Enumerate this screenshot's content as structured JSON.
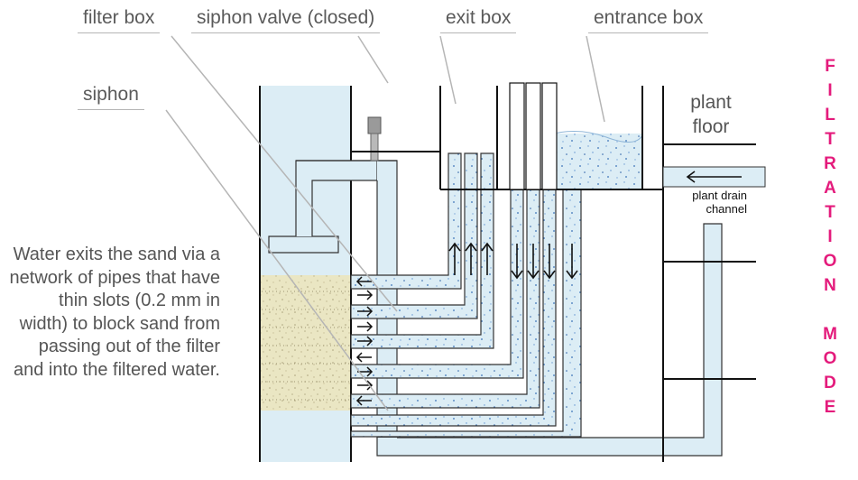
{
  "labels": {
    "filter_box": "filter box",
    "siphon_valve": "siphon valve (closed)",
    "exit_box": "exit box",
    "entrance_box": "entrance box",
    "siphon": "siphon",
    "plant_floor": "plant\nfloor",
    "plant_drain_channel": "plant drain\nchannel"
  },
  "description": "Water exits the sand via a network of pipes that have thin slots (0.2 mm in width) to block sand from passing out of the filter and into the filtered water.",
  "mode_title": "FILTRATION MODE",
  "colors": {
    "water": "#dcedf5",
    "sand": "#eae6c3",
    "outline": "#111111",
    "accent": "#e41b7c",
    "label_text": "#5a5a5a",
    "leader_line": "#b5b5b5"
  }
}
